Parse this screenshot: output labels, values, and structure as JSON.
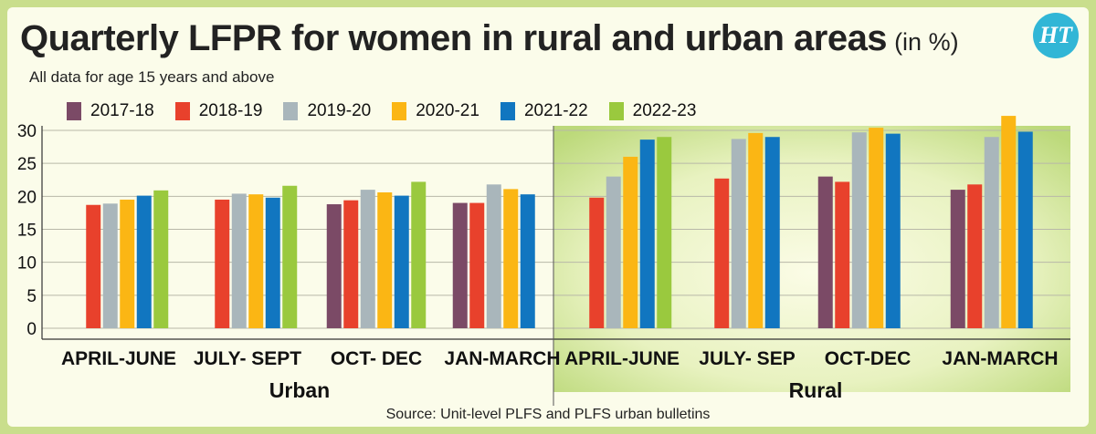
{
  "header": {
    "title": "Quarterly LFPR for women in rural and urban areas",
    "title_unit": "(in %)",
    "subtitle": "All data for age 15 years and above",
    "logo_text": "HT",
    "source": "Source: Unit-level PLFS and PLFS urban bulletins"
  },
  "chart_data": {
    "type": "bar",
    "ylim": [
      0,
      30
    ],
    "yticks": [
      0,
      5,
      10,
      15,
      20,
      25,
      30
    ],
    "grid": true,
    "legend_position": "top",
    "groups": [
      {
        "name": "Urban",
        "categories": [
          "APRIL-JUNE",
          "JULY- SEPT",
          "OCT- DEC",
          "JAN-MARCH"
        ]
      },
      {
        "name": "Rural",
        "categories": [
          "APRIL-JUNE",
          "JULY- SEP",
          "OCT-DEC",
          "JAN-MARCH"
        ]
      }
    ],
    "series": [
      {
        "name": "2017-18",
        "color": "#7b4a66",
        "values": [
          null,
          null,
          18.8,
          19.0,
          null,
          null,
          23.0,
          21.0
        ]
      },
      {
        "name": "2018-19",
        "color": "#e8412c",
        "values": [
          18.7,
          19.5,
          19.4,
          19.0,
          19.8,
          22.7,
          22.2,
          21.8
        ]
      },
      {
        "name": "2019-20",
        "color": "#a9b6bb",
        "values": [
          18.9,
          20.4,
          21.0,
          21.8,
          23.0,
          28.7,
          29.7,
          29.0
        ]
      },
      {
        "name": "2020-21",
        "color": "#fbb614",
        "values": [
          19.5,
          20.3,
          20.6,
          21.1,
          26.0,
          29.6,
          30.4,
          32.2
        ]
      },
      {
        "name": "2021-22",
        "color": "#1176c0",
        "values": [
          20.1,
          19.8,
          20.1,
          20.3,
          28.6,
          29.0,
          29.5,
          29.8
        ]
      },
      {
        "name": "2022-23",
        "color": "#9ac93e",
        "values": [
          20.9,
          21.6,
          22.2,
          null,
          29.0,
          null,
          null,
          null
        ]
      }
    ]
  }
}
